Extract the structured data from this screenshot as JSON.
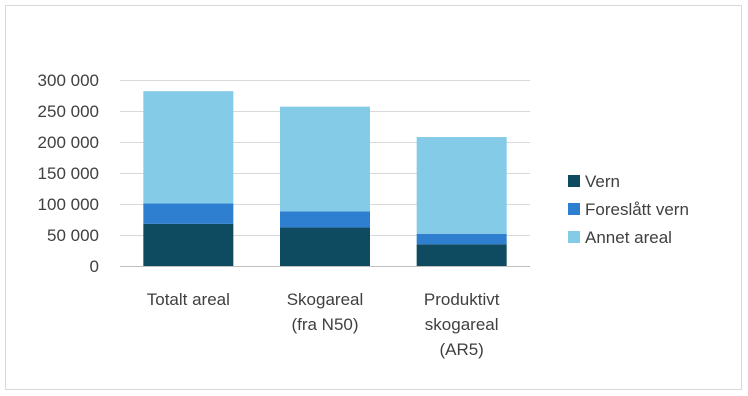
{
  "chart_data": {
    "type": "bar",
    "stacked": true,
    "categories": [
      [
        "Totalt areal"
      ],
      [
        "Skogareal",
        "(fra N50)"
      ],
      [
        "Produktivt",
        "skogareal",
        "(AR5)"
      ]
    ],
    "series": [
      {
        "name": "Vern",
        "color": "#0e4a60",
        "values": [
          68000,
          62000,
          35000
        ]
      },
      {
        "name": "Foreslått vern",
        "color": "#2e7fd0",
        "values": [
          33000,
          26000,
          17000
        ]
      },
      {
        "name": "Annet areal",
        "color": "#84cbe8",
        "values": [
          181000,
          169000,
          156000
        ]
      }
    ],
    "ylim": [
      0,
      300000
    ],
    "yticks": [
      0,
      50000,
      100000,
      150000,
      200000,
      250000,
      300000
    ],
    "ytick_labels": [
      "0",
      "50 000",
      "100 000",
      "150 000",
      "200 000",
      "250 000",
      "300 000"
    ],
    "grid": true,
    "legend_position": "right",
    "title": "",
    "xlabel": "",
    "ylabel": ""
  }
}
